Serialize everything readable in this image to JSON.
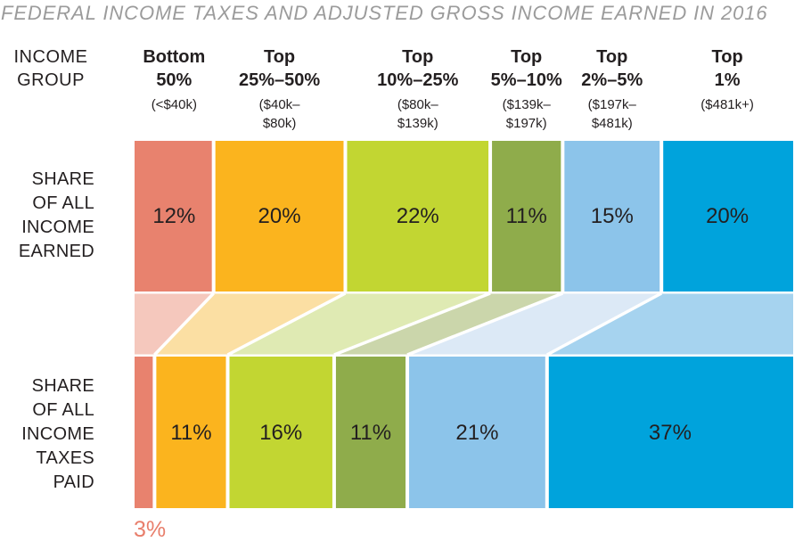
{
  "title": "FEDERAL INCOME TAXES AND ADJUSTED GROSS INCOME EARNED IN 2016",
  "header": {
    "income_group_lines": [
      "INCOME",
      "GROUP"
    ]
  },
  "groups": [
    {
      "name_lines": [
        "Bottom",
        "50%"
      ],
      "range_lines": [
        "(<$40k)"
      ],
      "color": "#E8826E",
      "flow_color": "#F5C8BD"
    },
    {
      "name_lines": [
        "Top",
        "25%–50%"
      ],
      "range_lines": [
        "($40k–",
        "$80k)"
      ],
      "color": "#FBB41E",
      "flow_color": "#FBDFA3"
    },
    {
      "name_lines": [
        "Top",
        "10%–25%"
      ],
      "range_lines": [
        "($80k–",
        "$139k)"
      ],
      "color": "#C2D632",
      "flow_color": "#DFEAB3"
    },
    {
      "name_lines": [
        "Top",
        "5%–10%"
      ],
      "range_lines": [
        "($139k–",
        "$197k)"
      ],
      "color": "#8FAC4B",
      "flow_color": "#CBD6AB"
    },
    {
      "name_lines": [
        "Top",
        "2%–5%"
      ],
      "range_lines": [
        "($197k–",
        "$481k)"
      ],
      "color": "#8CC4EA",
      "flow_color": "#DCE9F6"
    },
    {
      "name_lines": [
        "Top",
        "1%"
      ],
      "range_lines": [
        "($481k+)"
      ],
      "color": "#00A3DC",
      "flow_color": "#A6D3EF"
    }
  ],
  "row_labels": {
    "income_earned_lines": [
      "SHARE",
      "OF ALL",
      "INCOME",
      "EARNED"
    ],
    "taxes_paid_lines": [
      "SHARE",
      "OF ALL",
      "INCOME",
      "TAXES",
      "PAID"
    ]
  },
  "outside_label": {
    "text": "3%",
    "color": "#E87E6B"
  },
  "colors": {
    "text": "#231F20",
    "title": "#9B9B9B",
    "background": "#FFFFFF",
    "separator": "#FFFFFF"
  },
  "chart_data": {
    "type": "bar",
    "subtype": "100%-stacked horizontal bars with sankey-style flow band",
    "title": "FEDERAL INCOME TAXES AND ADJUSTED GROSS INCOME EARNED IN 2016",
    "categories": [
      "Bottom 50%",
      "Top 25%–50%",
      "Top 10%–25%",
      "Top 5%–10%",
      "Top 2%–5%",
      "Top 1%"
    ],
    "category_income_ranges": [
      "<$40k",
      "$40k–$80k",
      "$80k–$139k",
      "$139k–$197k",
      "$197k–$481k",
      "$481k+"
    ],
    "series": [
      {
        "name": "SHARE OF ALL INCOME EARNED",
        "values": [
          12,
          20,
          22,
          11,
          15,
          20
        ]
      },
      {
        "name": "SHARE OF ALL INCOME TAXES PAID",
        "values": [
          3,
          11,
          16,
          11,
          21,
          37
        ]
      }
    ],
    "unit": "%",
    "segment_colors": [
      "#E8826E",
      "#FBB41E",
      "#C2D632",
      "#8FAC4B",
      "#8CC4EA",
      "#00A3DC"
    ],
    "flow_colors": [
      "#F5C8BD",
      "#FBDFA3",
      "#DFEAB3",
      "#CBD6AB",
      "#DCE9F6",
      "#A6D3EF"
    ],
    "grid": false,
    "legend_position": "none",
    "value_labels": "inside segments; bottom-bar first segment (3%) labeled below bar"
  }
}
